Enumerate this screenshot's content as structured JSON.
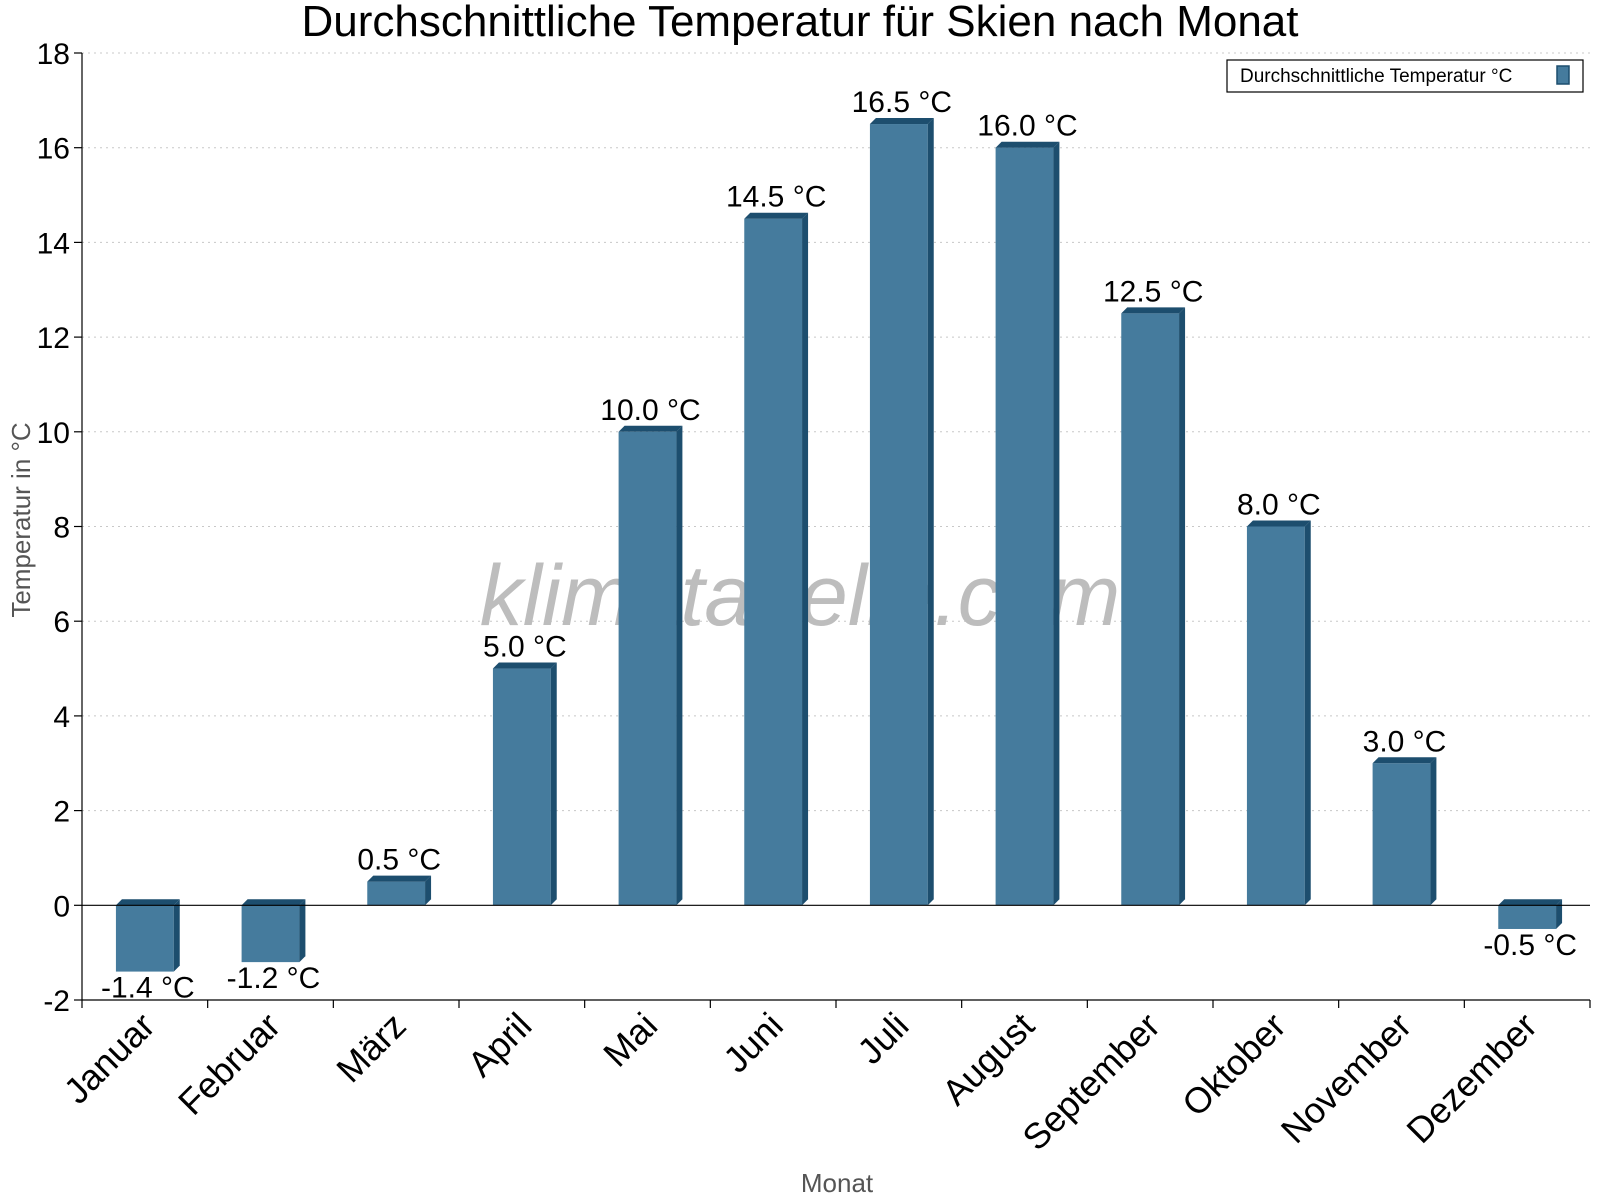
{
  "chart_data": {
    "type": "bar",
    "title": "Durchschnittliche Temperatur für Skien nach Monat",
    "xlabel": "Monat",
    "ylabel": "Temperatur in °C",
    "categories": [
      "Januar",
      "Februar",
      "März",
      "April",
      "Mai",
      "Juni",
      "Juli",
      "August",
      "September",
      "Oktober",
      "November",
      "Dezember"
    ],
    "series": [
      {
        "name": "Durchschnittliche Temperatur °C",
        "values": [
          -1.4,
          -1.2,
          0.5,
          5.0,
          10.0,
          14.5,
          16.5,
          16.0,
          12.5,
          8.0,
          3.0,
          -0.5
        ],
        "labels": [
          "-1.4 °C",
          "-1.2 °C",
          "0.5 °C",
          "5.0 °C",
          "10.0 °C",
          "14.5 °C",
          "16.5 °C",
          "16.0 °C",
          "12.5 °C",
          "8.0 °C",
          "3.0 °C",
          "-0.5 °C"
        ],
        "color": "#457b9d",
        "side_color": "#1d4e6e"
      }
    ],
    "ylim": [
      -2,
      18
    ],
    "yticks": [
      -2,
      0,
      2,
      4,
      6,
      8,
      10,
      12,
      14,
      16,
      18
    ],
    "grid": true,
    "legend_position": "top-right"
  },
  "watermark": "klimatabelle.com"
}
